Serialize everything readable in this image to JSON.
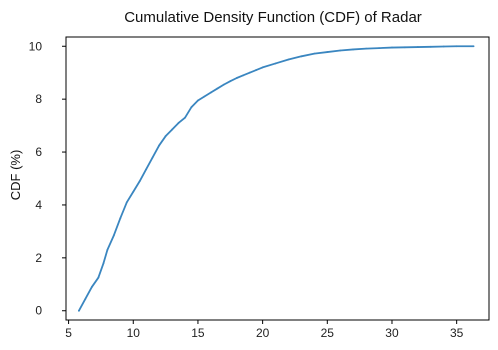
{
  "chart_data": {
    "type": "line",
    "title": "Cumulative Density Function (CDF) of Radar",
    "xlabel": "",
    "ylabel": "CDF (%)",
    "xlim": [
      4.8,
      37.5
    ],
    "ylim": [
      -0.35,
      10.35
    ],
    "x_ticks": [
      5,
      10,
      15,
      20,
      25,
      30,
      35
    ],
    "y_ticks": [
      0,
      2,
      4,
      6,
      8,
      10
    ],
    "y_tick_labels": [
      "0",
      "2",
      "4",
      "6",
      "8",
      "10"
    ],
    "grid": false,
    "series": [
      {
        "color": "#3a86c0",
        "x": [
          5.8,
          6.3,
          6.8,
          7.3,
          7.7,
          8.0,
          8.5,
          9.0,
          9.5,
          10.0,
          10.5,
          11.0,
          11.5,
          12.0,
          12.5,
          13.0,
          13.5,
          14.0,
          14.5,
          15.0,
          15.5,
          16.0,
          16.5,
          17.0,
          17.5,
          18.0,
          18.5,
          19.0,
          19.5,
          20.0,
          21.0,
          22.0,
          23.0,
          24.0,
          25.0,
          26.0,
          27.0,
          28.0,
          29.0,
          30.0,
          31.0,
          32.0,
          33.0,
          34.0,
          35.0,
          36.3
        ],
        "y": [
          0.0,
          0.45,
          0.9,
          1.25,
          1.8,
          2.3,
          2.85,
          3.5,
          4.1,
          4.5,
          4.9,
          5.35,
          5.8,
          6.25,
          6.6,
          6.85,
          7.1,
          7.3,
          7.7,
          7.95,
          8.1,
          8.25,
          8.4,
          8.55,
          8.68,
          8.8,
          8.9,
          9.0,
          9.1,
          9.2,
          9.35,
          9.5,
          9.62,
          9.72,
          9.78,
          9.84,
          9.88,
          9.91,
          9.93,
          9.95,
          9.96,
          9.97,
          9.98,
          9.99,
          10.0,
          10.0
        ]
      }
    ]
  }
}
